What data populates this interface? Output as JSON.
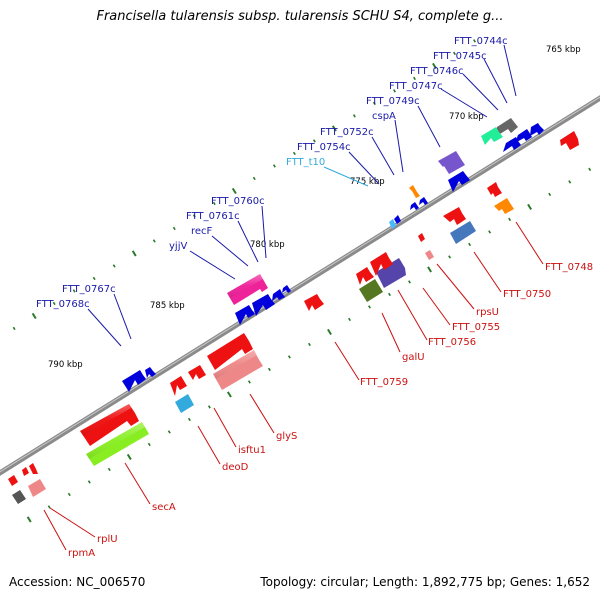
{
  "title": "Francisella tularensis subsp. tularensis SCHU S4, complete g...",
  "footer": {
    "accession": "Accession: NC_006570",
    "summary": "Topology: circular; Length: 1,892,775 bp; Genes: 1,652"
  },
  "colors": {
    "backbone": "#777777",
    "tick": "#2a7a2a",
    "plus_label": "#1a1aa8",
    "minus_label": "#cc1111",
    "trna_label": "#33aadd"
  },
  "kbp_labels": [
    "765 kbp",
    "770 kbp",
    "775 kbp",
    "780 kbp",
    "785 kbp",
    "790 kbp"
  ],
  "plus_genes": [
    {
      "label": "FTT_0744c",
      "color": "#0000dd"
    },
    {
      "label": "FTT_0745c",
      "color": "#0000dd"
    },
    {
      "label": "FTT_0746c",
      "color": "#0000dd"
    },
    {
      "label": "FTT_0747c",
      "color": "#666666"
    },
    {
      "label": "FTT_0749c",
      "color": "#22ee99"
    },
    {
      "label": "cspA",
      "color": "#0000dd"
    },
    {
      "label": "FTT_0752c",
      "color": "#7755cc"
    },
    {
      "label": "FTT_0754c",
      "color": "#ff8800"
    },
    {
      "label": "FTT_t10",
      "color": "#44bbff",
      "type": "trna"
    },
    {
      "label": "FTT_0760c",
      "color": "#0000dd"
    },
    {
      "label": "FTT_0761c",
      "color": "#0000dd"
    },
    {
      "label": "recF",
      "color": "#0000dd"
    },
    {
      "label": "yjjV",
      "color": "#ee2299"
    },
    {
      "label": "FTT_0767c",
      "color": "#0000dd"
    },
    {
      "label": "FTT_0768c",
      "color": "#0000dd"
    }
  ],
  "minus_genes": [
    {
      "label": "FTT_0748",
      "color": "#ff8800"
    },
    {
      "label": "FTT_0750",
      "color": "#4477bb"
    },
    {
      "label": "rpsU",
      "color": "#ee8888"
    },
    {
      "label": "FTT_0755",
      "color": "#5544aa"
    },
    {
      "label": "FTT_0756",
      "color": "#557722"
    },
    {
      "label": "galU",
      "color": "#ee1111"
    },
    {
      "label": "FTT_0759",
      "color": "#ee1111"
    },
    {
      "label": "glyS",
      "color": "#ee8888"
    },
    {
      "label": "isftu1",
      "color": "#33aadd"
    },
    {
      "label": "deoD",
      "color": "#ee1111"
    },
    {
      "label": "secA",
      "color": "#88ee22"
    },
    {
      "label": "rplU",
      "color": "#ee8888"
    },
    {
      "label": "rpmA",
      "color": "#555555"
    }
  ]
}
